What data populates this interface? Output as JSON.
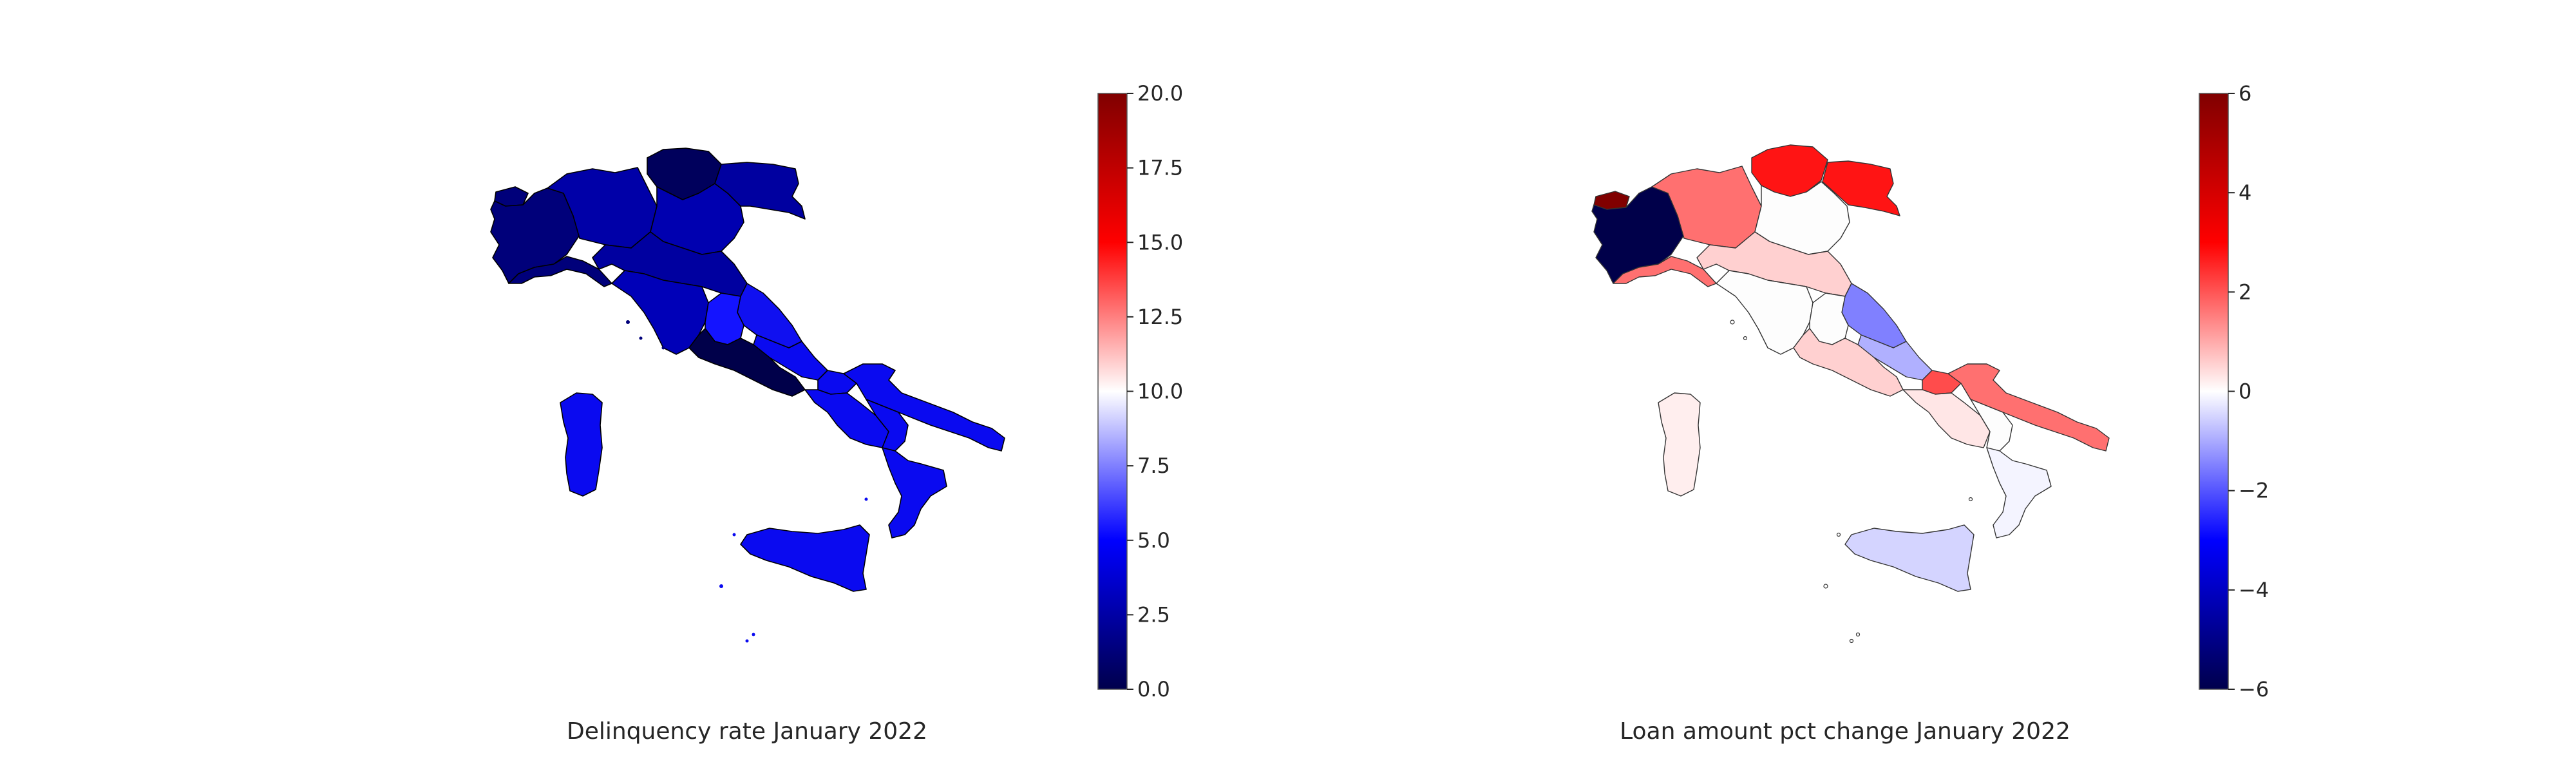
{
  "maps": [
    {
      "title": "Delinquency rate January 2022",
      "colormap": "seismic",
      "vmin": 0,
      "vmax": 20,
      "colorbar_ticks": [
        "0.0",
        "2.5",
        "5.0",
        "7.5",
        "10.0",
        "12.5",
        "15.0",
        "17.5",
        "20.0"
      ],
      "colors": {
        "dark_navy": "#00004a",
        "navy": "#00007a",
        "mid_blue": "#0000c8",
        "blue": "#0a0af0",
        "bright_blue": "#1414ff"
      }
    },
    {
      "title": "Loan amount pct change January 2022",
      "colormap": "seismic",
      "vmin": -6,
      "vmax": 6,
      "colorbar_ticks": [
        "−6",
        "−4",
        "−2",
        "0",
        "2",
        "4",
        "6"
      ],
      "colors": {
        "dark_red": "#800000",
        "red": "#ff1414",
        "salmon": "#ff7070",
        "light_pink": "#ffd0d0",
        "very_light_pink": "#ffe6e6",
        "white": "#fdfdfd",
        "light_lavender": "#d4d4ff",
        "lavender": "#b0b0ff",
        "periwinkle": "#8080ff",
        "navy": "#00004a"
      }
    }
  ]
}
